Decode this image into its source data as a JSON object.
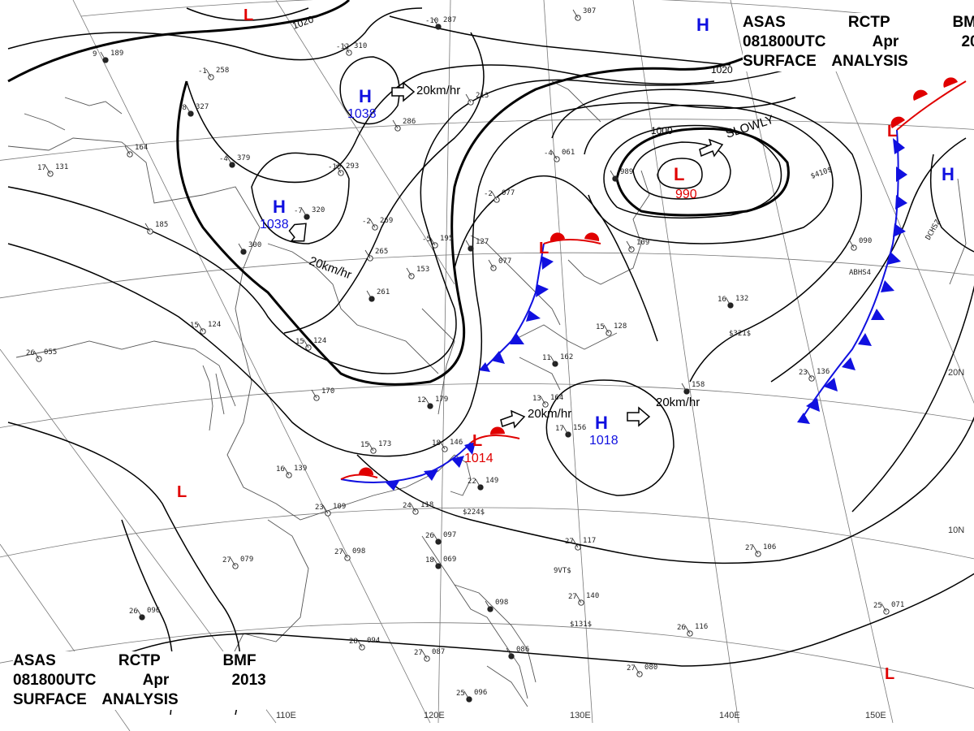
{
  "header": {
    "line1": [
      "ASAS",
      "RCTP",
      "BMF"
    ],
    "line2": [
      "081800UTC",
      "Apr",
      "2013"
    ],
    "line3": "SURFACE ANALYSIS"
  },
  "longitude_labels": [
    "110E",
    "120E",
    "130E",
    "140E",
    "150E"
  ],
  "latitude_labels": [
    "20N",
    "10N"
  ],
  "isobar_labels": [
    "1020",
    "1020",
    "1000"
  ],
  "pressure_systems": [
    {
      "type": "H",
      "value": "1038"
    },
    {
      "type": "H",
      "value": "1038"
    },
    {
      "type": "L",
      "value": "990"
    },
    {
      "type": "H",
      "value": "1018"
    },
    {
      "type": "L",
      "value": "1014"
    },
    {
      "type": "L",
      "value": ""
    },
    {
      "type": "L",
      "value": ""
    },
    {
      "type": "L",
      "value": ""
    },
    {
      "type": "L",
      "value": ""
    },
    {
      "type": "H",
      "value": ""
    },
    {
      "type": "H",
      "value": ""
    }
  ],
  "movement_labels": [
    "20km/hr",
    "20km/hr",
    "SLOWLY",
    "20km/hr",
    "20km/hr"
  ],
  "stations": [
    {
      "p": "189",
      "t": "9"
    },
    {
      "p": "258",
      "t": "-1"
    },
    {
      "p": "310",
      "t": "-12"
    },
    {
      "p": "287",
      "t": "-10"
    },
    {
      "p": "307",
      "t": ""
    },
    {
      "p": "213",
      "t": ""
    },
    {
      "p": "327",
      "t": "-8"
    },
    {
      "p": "286",
      "t": ""
    },
    {
      "p": "164",
      "t": ""
    },
    {
      "p": "379",
      "t": "-4"
    },
    {
      "p": "293",
      "t": "-10"
    },
    {
      "p": "131",
      "t": "17"
    },
    {
      "p": "320",
      "t": "-7"
    },
    {
      "p": "269",
      "t": "-2"
    },
    {
      "p": "185",
      "t": ""
    },
    {
      "p": "300",
      "t": ""
    },
    {
      "p": "265",
      "t": ""
    },
    {
      "p": "195",
      "t": "-5"
    },
    {
      "p": "127",
      "t": ""
    },
    {
      "p": "077",
      "t": "-2"
    },
    {
      "p": "061",
      "t": "-4"
    },
    {
      "p": "989",
      "t": ""
    },
    {
      "p": "077",
      "t": ""
    },
    {
      "p": "153",
      "t": ""
    },
    {
      "p": "261",
      "t": ""
    },
    {
      "p": "109",
      "t": ""
    },
    {
      "p": "090",
      "t": ""
    },
    {
      "p": "132",
      "t": "16"
    },
    {
      "p": "124",
      "t": "15"
    },
    {
      "p": "128",
      "t": "15"
    },
    {
      "p": "162",
      "t": "11"
    },
    {
      "p": "124",
      "t": "15"
    },
    {
      "p": "055",
      "t": "26"
    },
    {
      "p": "179",
      "t": "12"
    },
    {
      "p": "170",
      "t": ""
    },
    {
      "p": "164",
      "t": "13"
    },
    {
      "p": "158",
      "t": ""
    },
    {
      "p": "136",
      "t": "23"
    },
    {
      "p": "173",
      "t": "15"
    },
    {
      "p": "156",
      "t": "17"
    },
    {
      "p": "146",
      "t": "18"
    },
    {
      "p": "139",
      "t": "16"
    },
    {
      "p": "149",
      "t": "22"
    },
    {
      "p": "109",
      "t": "23"
    },
    {
      "p": "118",
      "t": "24"
    },
    {
      "p": "097",
      "t": "26"
    },
    {
      "p": "079",
      "t": "27"
    },
    {
      "p": "098",
      "t": "27"
    },
    {
      "p": "069",
      "t": "18"
    },
    {
      "p": "117",
      "t": "27"
    },
    {
      "p": "106",
      "t": "27"
    },
    {
      "p": "098",
      "t": ""
    },
    {
      "p": "140",
      "t": "27"
    },
    {
      "p": "071",
      "t": "25"
    },
    {
      "p": "096",
      "t": "26"
    },
    {
      "p": "094",
      "t": "28"
    },
    {
      "p": "087",
      "t": "27"
    },
    {
      "p": "086",
      "t": ""
    },
    {
      "p": "116",
      "t": "26"
    },
    {
      "p": "080",
      "t": "27"
    },
    {
      "p": "096",
      "t": "25"
    }
  ],
  "area_labels": [
    "ABHS4",
    "DCHSZ",
    "$410$",
    "$321$",
    "$224$",
    "$131$",
    "9VT$"
  ],
  "colors": {
    "low": "#e00000",
    "high": "#1010e0",
    "cold_front": "#1010e0",
    "warm_front": "#e00000",
    "lines": "#000000"
  }
}
